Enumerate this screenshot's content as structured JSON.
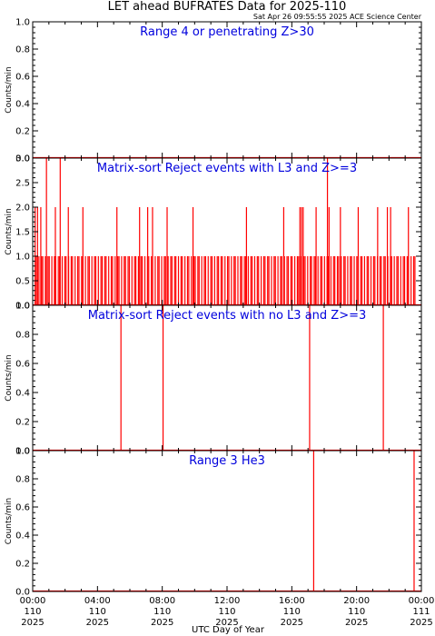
{
  "title": "LET ahead BUFRATES Data for 2025-110",
  "timestamp": "Sat Apr 26 09:55:55 2025 ACE Science Center",
  "xlabel": "UTC Day of Year",
  "x_ticks": [
    {
      "time": "00:00",
      "day": "110",
      "year": "2025"
    },
    {
      "time": "04:00",
      "day": "110",
      "year": "2025"
    },
    {
      "time": "08:00",
      "day": "110",
      "year": "2025"
    },
    {
      "time": "12:00",
      "day": "110",
      "year": "2025"
    },
    {
      "time": "16:00",
      "day": "110",
      "year": "2025"
    },
    {
      "time": "20:00",
      "day": "110",
      "year": "2025"
    },
    {
      "time": "00:00",
      "day": "111",
      "year": "2025"
    }
  ],
  "colors": {
    "data": "#ff0000",
    "label": "#0000dd",
    "axes": "#000000"
  },
  "chart_data": [
    {
      "type": "line",
      "label": "Range 4 or  penetrating Z>30",
      "ylabel": "Counts/min",
      "ylim": [
        0,
        1.0
      ],
      "yticks": [
        "0.0",
        "0.2",
        "0.4",
        "0.6",
        "0.8",
        "1.0"
      ],
      "xlim_hours": [
        0,
        24
      ],
      "spikes": [],
      "dense": null
    },
    {
      "type": "line",
      "label": "Matrix-sort Reject events with L3 and Z>=3",
      "ylabel": "Counts/min",
      "ylim": [
        0,
        3.0
      ],
      "yticks": [
        "0.0",
        "0.5",
        "1.0",
        "1.5",
        "2.0",
        "2.5",
        "3.0"
      ],
      "xlim_hours": [
        0,
        24
      ],
      "spikes": [
        {
          "x": 0.85,
          "y": 3
        },
        {
          "x": 1.7,
          "y": 3
        },
        {
          "x": 18.2,
          "y": 3
        },
        {
          "x": 0.15,
          "y": 2
        },
        {
          "x": 0.3,
          "y": 2
        },
        {
          "x": 0.5,
          "y": 2
        },
        {
          "x": 1.4,
          "y": 2
        },
        {
          "x": 2.2,
          "y": 2
        },
        {
          "x": 3.1,
          "y": 2
        },
        {
          "x": 5.2,
          "y": 2
        },
        {
          "x": 6.6,
          "y": 2
        },
        {
          "x": 7.1,
          "y": 2
        },
        {
          "x": 7.4,
          "y": 2
        },
        {
          "x": 8.3,
          "y": 2
        },
        {
          "x": 9.9,
          "y": 2
        },
        {
          "x": 13.2,
          "y": 2
        },
        {
          "x": 15.5,
          "y": 2
        },
        {
          "x": 16.5,
          "y": 2
        },
        {
          "x": 16.6,
          "y": 2
        },
        {
          "x": 16.7,
          "y": 2
        },
        {
          "x": 17.5,
          "y": 2
        },
        {
          "x": 18.3,
          "y": 2
        },
        {
          "x": 19.0,
          "y": 2
        },
        {
          "x": 20.1,
          "y": 2
        },
        {
          "x": 21.3,
          "y": 2
        },
        {
          "x": 21.9,
          "y": 2
        },
        {
          "x": 22.1,
          "y": 2
        },
        {
          "x": 23.2,
          "y": 2
        }
      ],
      "dense": {
        "from": 0.2,
        "to": 23.7,
        "count": 180,
        "y": 1
      }
    },
    {
      "type": "line",
      "label": "Matrix-sort Reject events with no L3 and Z>=3",
      "ylabel": "Counts/min",
      "ylim": [
        0,
        1.0
      ],
      "yticks": [
        "0.0",
        "0.2",
        "0.4",
        "0.6",
        "0.8",
        "1.0"
      ],
      "xlim_hours": [
        0,
        24
      ],
      "spikes": [
        {
          "x": 5.45,
          "y": 1
        },
        {
          "x": 8.05,
          "y": 1
        },
        {
          "x": 17.1,
          "y": 1
        },
        {
          "x": 21.65,
          "y": 1
        }
      ],
      "dense": null
    },
    {
      "type": "line",
      "label": "Range 3 He3",
      "ylabel": "Counts/min",
      "ylim": [
        0,
        1.0
      ],
      "yticks": [
        "0.0",
        "0.2",
        "0.4",
        "0.6",
        "0.8",
        "1.0"
      ],
      "xlim_hours": [
        0,
        24
      ],
      "spikes": [
        {
          "x": 17.35,
          "y": 1
        },
        {
          "x": 23.55,
          "y": 1
        }
      ],
      "dense": null
    }
  ]
}
